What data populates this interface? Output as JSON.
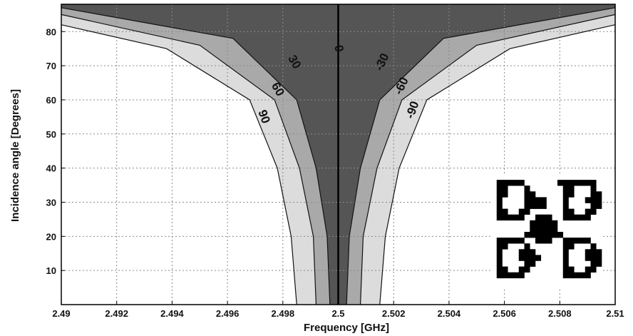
{
  "chart_data": {
    "type": "contour",
    "xlabel": "Frequency [GHz]",
    "ylabel": "Incidence angle [Degrees]",
    "xlim": [
      2.49,
      2.51
    ],
    "ylim": [
      0,
      88
    ],
    "grid": true,
    "x_ticks": [
      "2.49",
      "2.492",
      "2.494",
      "2.496",
      "2.498",
      "2.5",
      "2.502",
      "2.504",
      "2.506",
      "2.508",
      "2.51"
    ],
    "x_tick_values": [
      2.49,
      2.492,
      2.494,
      2.496,
      2.498,
      2.5,
      2.502,
      2.504,
      2.506,
      2.508,
      2.51
    ],
    "y_ticks": [
      "10",
      "20",
      "30",
      "40",
      "50",
      "60",
      "70",
      "80"
    ],
    "y_tick_values": [
      10,
      20,
      30,
      40,
      50,
      60,
      70,
      80
    ],
    "center_frequency": 2.5,
    "contour_levels": [
      90,
      60,
      30,
      0,
      -30,
      -60,
      -90
    ],
    "contour_labels": [
      {
        "text": "90",
        "x": 2.4973,
        "y": 55,
        "rotate": 70
      },
      {
        "text": "60",
        "x": 2.4978,
        "y": 63,
        "rotate": 60
      },
      {
        "text": "30",
        "x": 2.4984,
        "y": 71,
        "rotate": 60
      },
      {
        "text": "0",
        "x": 2.5,
        "y": 75,
        "rotate": 80
      },
      {
        "text": "-30",
        "x": 2.5016,
        "y": 71,
        "rotate": -65
      },
      {
        "text": "-60",
        "x": 2.5023,
        "y": 64,
        "rotate": -65
      },
      {
        "text": "-90",
        "x": 2.5027,
        "y": 57,
        "rotate": -70
      }
    ],
    "contour_curves": {
      "90": [
        [
          2.4985,
          0
        ],
        [
          2.4983,
          20
        ],
        [
          2.4978,
          40
        ],
        [
          2.4968,
          60
        ],
        [
          2.4938,
          75
        ],
        [
          2.49,
          82
        ]
      ],
      "60": [
        [
          2.4992,
          0
        ],
        [
          2.4991,
          20
        ],
        [
          2.4986,
          40
        ],
        [
          2.4977,
          60
        ],
        [
          2.495,
          76
        ],
        [
          2.49,
          85
        ]
      ],
      "30": [
        [
          2.4997,
          0
        ],
        [
          2.4996,
          20
        ],
        [
          2.4992,
          40
        ],
        [
          2.4985,
          60
        ],
        [
          2.4962,
          78
        ],
        [
          2.49,
          87
        ]
      ],
      "-30": [
        [
          2.5003,
          0
        ],
        [
          2.5004,
          20
        ],
        [
          2.5008,
          40
        ],
        [
          2.5015,
          60
        ],
        [
          2.5038,
          78
        ],
        [
          2.51,
          87
        ]
      ],
      "-60": [
        [
          2.5008,
          0
        ],
        [
          2.5009,
          20
        ],
        [
          2.5014,
          40
        ],
        [
          2.5023,
          60
        ],
        [
          2.505,
          76
        ],
        [
          2.51,
          85
        ]
      ],
      "-90": [
        [
          2.5015,
          0
        ],
        [
          2.5017,
          20
        ],
        [
          2.5022,
          40
        ],
        [
          2.5032,
          60
        ],
        [
          2.5062,
          75
        ],
        [
          2.51,
          82
        ]
      ]
    },
    "region_fills": [
      "#ffffff",
      "#dcdcdc",
      "#a9a9a9",
      "#555555",
      "#555555",
      "#a9a9a9",
      "#dcdcdc",
      "#ffffff"
    ],
    "unit_cell_pattern": [
      "00000000000000000000",
      "01111100000011111110",
      "01100010000001100010",
      "01100011000001100011",
      "01000011110001000111",
      "01000011110001000011",
      "01100110000001100110",
      "01111100111001111100",
      "00000001111100000000",
      "00000001111100000000",
      "00000011111110000000",
      "01111100111001111100",
      "01100010000001100010",
      "01000111000001000111",
      "01000111100001000111",
      "01000011000001000011",
      "01100110000001100110",
      "01111100000001111100",
      "00000000000000000000",
      "00000000000000000000"
    ]
  }
}
